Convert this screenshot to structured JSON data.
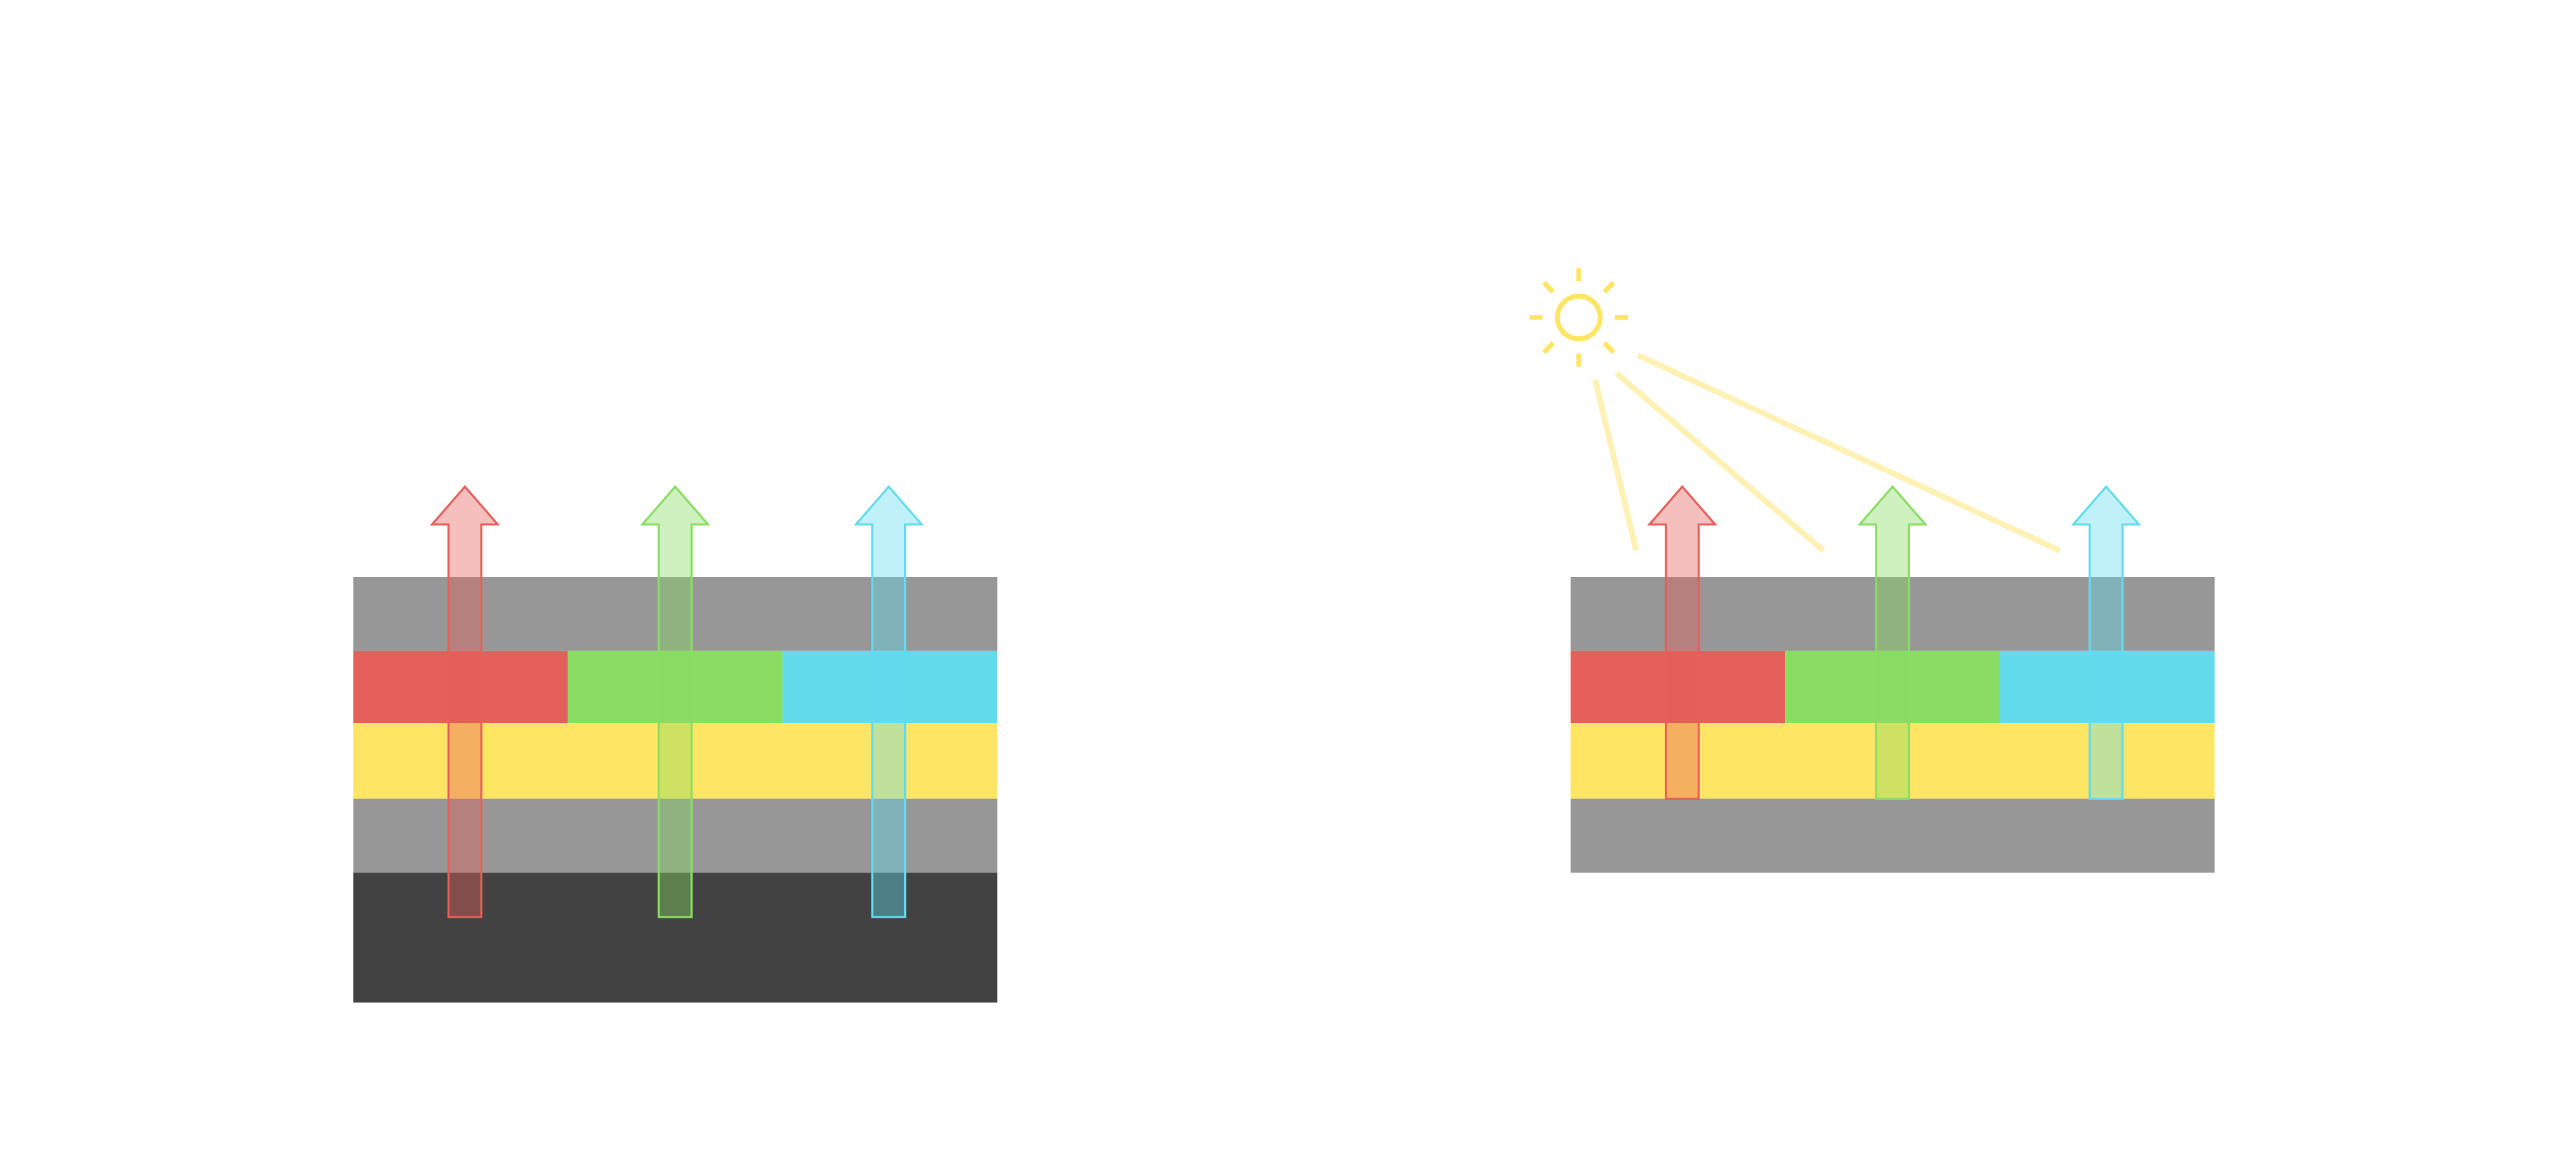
{
  "colors": {
    "red": "#E5605B",
    "green": "#88DD62",
    "cyan": "#62DBED",
    "yellow": "#FFE564",
    "gray": "#979797",
    "dark": "#424242",
    "light_beam": "#FFF0B3"
  },
  "diagrams": [
    {
      "id": "left",
      "layers": [
        "gray",
        "color-filter",
        "yellow",
        "gray",
        "dark"
      ],
      "arrows": [
        "red",
        "green",
        "cyan"
      ]
    },
    {
      "id": "right",
      "layers": [
        "gray",
        "color-filter",
        "yellow",
        "gray"
      ],
      "arrows": [
        "red",
        "green",
        "cyan"
      ],
      "sun": true,
      "light_beams": 3
    }
  ]
}
